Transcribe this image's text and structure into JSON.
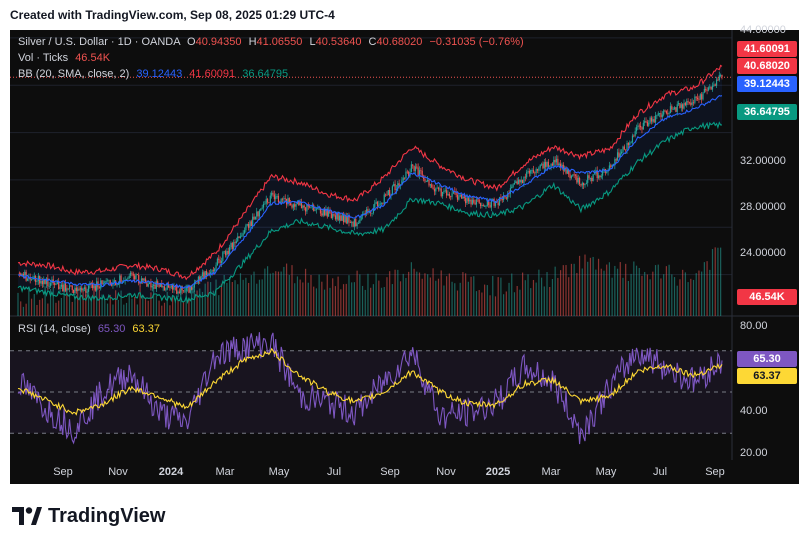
{
  "header": {
    "created_text": "Created with TradingView.com, Sep 08, 2025 01:29 UTC-4"
  },
  "legend": {
    "symbol": "Silver / U.S. Dollar · 1D · OANDA",
    "open_label": "O",
    "open": "40.94350",
    "high_label": "H",
    "high": "41.06550",
    "low_label": "L",
    "low": "40.53640",
    "close_label": "C",
    "close": "40.68020",
    "change": "−0.31035 (−0.76%)",
    "vol_label": "Vol · Ticks",
    "vol": "46.54K",
    "bb_label": "BB (20, SMA, close, 2)",
    "bb_basis": "39.12443",
    "bb_upper": "41.60091",
    "bb_lower": "36.64795",
    "rsi_label": "RSI (14, close)",
    "rsi": "65.30",
    "rsi_ma": "63.37"
  },
  "badges": {
    "upper": "41.60091",
    "close": "40.68020",
    "basis": "39.12443",
    "lower": "36.64795",
    "volume": "46.54K",
    "rsi": "65.30",
    "rsi_ma": "63.37"
  },
  "price_axis": [
    "44.00000",
    "32.00000",
    "28.00000",
    "24.00000"
  ],
  "rsi_axis": [
    "80.00",
    "40.00",
    "20.00"
  ],
  "x_axis": [
    "Sep",
    "Nov",
    "2024",
    "Mar",
    "May",
    "Jul",
    "Sep",
    "Nov",
    "2025",
    "Mar",
    "May",
    "Jul",
    "Sep"
  ],
  "footer": {
    "brand": "TradingView"
  },
  "colors": {
    "up": "#26a69a",
    "down": "#ef5350",
    "bb_upper": "#f23645",
    "bb_basis": "#2962ff",
    "bb_lower": "#089981",
    "rsi": "#7e57c2",
    "rsi_ma": "#fdd835",
    "background": "#0d0d0d"
  },
  "chart_data": [
    {
      "type": "line",
      "title": "Silver / U.S. Dollar · 1D · OANDA",
      "ylim": [
        20.5,
        44.5
      ],
      "x": [
        "2023-08",
        "2023-09",
        "2023-10",
        "2023-11",
        "2023-12",
        "2024-01",
        "2024-02",
        "2024-03",
        "2024-04",
        "2024-05",
        "2024-06",
        "2024-07",
        "2024-08",
        "2024-09",
        "2024-10",
        "2024-11",
        "2024-12",
        "2025-01",
        "2025-02",
        "2025-03",
        "2025-04",
        "2025-05",
        "2025-06",
        "2025-07",
        "2025-08",
        "2025-09"
      ],
      "series": [
        {
          "name": "Close",
          "values": [
            24.0,
            23.4,
            22.6,
            23.2,
            23.8,
            23.0,
            22.6,
            24.8,
            27.5,
            30.7,
            29.8,
            29.2,
            28.3,
            30.5,
            33.0,
            31.0,
            30.3,
            30.0,
            32.3,
            33.6,
            31.8,
            33.0,
            36.3,
            37.8,
            38.6,
            40.68
          ]
        },
        {
          "name": "BB upper",
          "values": [
            25.0,
            24.8,
            24.2,
            24.3,
            24.8,
            24.5,
            23.8,
            25.8,
            29.0,
            32.3,
            31.8,
            30.8,
            30.3,
            32.2,
            34.8,
            33.2,
            32.0,
            31.3,
            33.4,
            34.8,
            34.0,
            34.6,
            37.6,
            39.2,
            39.8,
            41.6
          ]
        },
        {
          "name": "BB basis",
          "values": [
            23.9,
            23.6,
            23.2,
            23.1,
            23.5,
            23.3,
            22.9,
            24.2,
            27.0,
            30.0,
            30.2,
            29.4,
            28.8,
            29.9,
            32.6,
            31.6,
            30.6,
            30.2,
            31.6,
            33.2,
            32.6,
            32.8,
            35.5,
            37.2,
            38.0,
            39.12
          ]
        },
        {
          "name": "BB lower",
          "values": [
            22.9,
            22.5,
            22.1,
            22.0,
            22.3,
            22.1,
            21.9,
            22.5,
            25.0,
            27.7,
            28.5,
            28.0,
            27.4,
            27.8,
            30.4,
            30.0,
            29.2,
            29.0,
            29.8,
            31.6,
            29.5,
            31.0,
            33.5,
            35.3,
            36.5,
            36.65
          ]
        }
      ]
    },
    {
      "type": "bar",
      "title": "Vol · Ticks",
      "categories": [
        "2023-08",
        "2023-09",
        "2023-10",
        "2023-11",
        "2023-12",
        "2024-01",
        "2024-02",
        "2024-03",
        "2024-04",
        "2024-05",
        "2024-06",
        "2024-07",
        "2024-08",
        "2024-09",
        "2024-10",
        "2024-11",
        "2024-12",
        "2025-01",
        "2025-02",
        "2025-03",
        "2025-04",
        "2025-05",
        "2025-06",
        "2025-07",
        "2025-08",
        "2025-09"
      ],
      "values": [
        12,
        14,
        16,
        15,
        14,
        13,
        15,
        20,
        26,
        32,
        28,
        24,
        25,
        24,
        30,
        27,
        22,
        20,
        24,
        26,
        38,
        30,
        30,
        28,
        26,
        46.54
      ]
    },
    {
      "type": "line",
      "title": "RSI (14, close)",
      "ylim": [
        18,
        82
      ],
      "x": [
        "2023-08",
        "2023-09",
        "2023-10",
        "2023-11",
        "2023-12",
        "2024-01",
        "2024-02",
        "2024-03",
        "2024-04",
        "2024-05",
        "2024-06",
        "2024-07",
        "2024-08",
        "2024-09",
        "2024-10",
        "2024-11",
        "2024-12",
        "2025-01",
        "2025-02",
        "2025-03",
        "2025-04",
        "2025-05",
        "2025-06",
        "2025-07",
        "2025-08",
        "2025-09"
      ],
      "series": [
        {
          "name": "RSI",
          "values": [
            55,
            42,
            32,
            50,
            60,
            40,
            35,
            68,
            72,
            74,
            48,
            45,
            40,
            55,
            70,
            38,
            40,
            45,
            62,
            55,
            30,
            52,
            70,
            62,
            55,
            65.3
          ]
        },
        {
          "name": "RSI MA",
          "values": [
            52,
            46,
            40,
            44,
            52,
            48,
            42,
            55,
            65,
            70,
            58,
            50,
            45,
            50,
            60,
            50,
            44,
            44,
            54,
            56,
            45,
            48,
            60,
            63,
            58,
            63.37
          ]
        }
      ]
    }
  ]
}
